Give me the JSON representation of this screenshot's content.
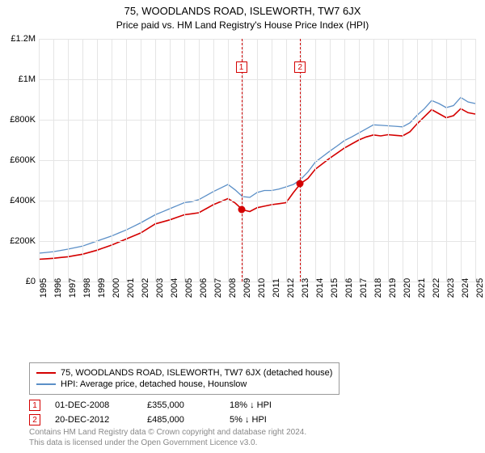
{
  "title": "75, WOODLANDS ROAD, ISLEWORTH, TW7 6JX",
  "subtitle": "Price paid vs. HM Land Registry's House Price Index (HPI)",
  "chart": {
    "type": "line",
    "background_color": "#ffffff",
    "grid_color": "#e5e5e5",
    "title_fontsize": 13,
    "label_fontsize": 11,
    "ylim": [
      0,
      1200000
    ],
    "ytick_step": 200000,
    "ytick_labels": [
      "£0",
      "£200K",
      "£400K",
      "£600K",
      "£800K",
      "£1M",
      "£1.2M"
    ],
    "xlim": [
      1995,
      2025
    ],
    "xtick_step": 1,
    "xtick_labels": [
      "1995",
      "1996",
      "1997",
      "1998",
      "1999",
      "2000",
      "2001",
      "2002",
      "2003",
      "2004",
      "2005",
      "2006",
      "2007",
      "2008",
      "2009",
      "2010",
      "2011",
      "2012",
      "2013",
      "2014",
      "2015",
      "2016",
      "2017",
      "2018",
      "2019",
      "2020",
      "2021",
      "2022",
      "2023",
      "2024",
      "2025"
    ],
    "series": [
      {
        "name": "property",
        "label": "75, WOODLANDS ROAD, ISLEWORTH, TW7 6JX (detached house)",
        "color": "#d40000",
        "line_width": 1.6,
        "x": [
          1995,
          1995.5,
          1996,
          1996.5,
          1997,
          1997.5,
          1998,
          1998.5,
          1999,
          1999.5,
          2000,
          2000.5,
          2001,
          2001.5,
          2002,
          2002.5,
          2003,
          2003.5,
          2004,
          2004.5,
          2005,
          2005.5,
          2006,
          2006.5,
          2007,
          2007.5,
          2008,
          2008.5,
          2009,
          2009.5,
          2010,
          2010.5,
          2011,
          2011.5,
          2012,
          2012.5,
          2013,
          2013.5,
          2014,
          2014.5,
          2015,
          2015.5,
          2016,
          2016.5,
          2017,
          2017.5,
          2018,
          2018.5,
          2019,
          2019.5,
          2020,
          2020.5,
          2021,
          2021.5,
          2022,
          2022.5,
          2023,
          2023.5,
          2024,
          2024.5,
          2025
        ],
        "y": [
          110000,
          112500,
          115000,
          118750,
          122500,
          128750,
          135000,
          145000,
          155000,
          167500,
          180000,
          195000,
          210000,
          225000,
          240000,
          262500,
          285000,
          295000,
          305000,
          317500,
          330000,
          335000,
          340000,
          360000,
          380000,
          395000,
          410000,
          388000,
          355000,
          346000,
          365000,
          372500,
          380000,
          385000,
          390000,
          440000,
          485000,
          510000,
          555000,
          582500,
          610000,
          635000,
          660000,
          680000,
          700000,
          715000,
          725000,
          720000,
          726000,
          723000,
          720000,
          740000,
          780000,
          815000,
          850000,
          830000,
          810000,
          820000,
          855000,
          835000,
          828000
        ]
      },
      {
        "name": "hpi",
        "label": "HPI: Average price, detached house, Hounslow",
        "color": "#5b8fc7",
        "line_width": 1.3,
        "x": [
          1995,
          1995.5,
          1996,
          1996.5,
          1997,
          1997.5,
          1998,
          1998.5,
          1999,
          1999.5,
          2000,
          2000.5,
          2001,
          2001.5,
          2002,
          2002.5,
          2003,
          2003.5,
          2004,
          2004.5,
          2005,
          2005.5,
          2006,
          2006.5,
          2007,
          2007.5,
          2008,
          2008.5,
          2009,
          2009.5,
          2010,
          2010.5,
          2011,
          2011.5,
          2012,
          2012.5,
          2013,
          2013.5,
          2014,
          2014.5,
          2015,
          2015.5,
          2016,
          2016.5,
          2017,
          2017.5,
          2018,
          2018.5,
          2019,
          2019.5,
          2020,
          2020.5,
          2021,
          2021.5,
          2022,
          2022.5,
          2023,
          2023.5,
          2024,
          2024.5,
          2025
        ],
        "y": [
          140000,
          143750,
          147500,
          153750,
          160000,
          167500,
          175000,
          187500,
          200000,
          212500,
          225000,
          240000,
          255000,
          272500,
          290000,
          310000,
          330000,
          345000,
          360000,
          375000,
          390000,
          395000,
          405000,
          425000,
          445000,
          462500,
          480000,
          453000,
          420000,
          416000,
          440000,
          450000,
          450000,
          457000,
          468000,
          480000,
          505000,
          542500,
          590000,
          617500,
          645000,
          670000,
          697000,
          715000,
          735000,
          755000,
          775000,
          772500,
          770000,
          767500,
          765000,
          784000,
          822000,
          855000,
          895000,
          880000,
          860000,
          870000,
          910000,
          888000,
          880000
        ]
      }
    ],
    "markers": [
      {
        "n": "1",
        "x": 2008.92,
        "y": 355000,
        "color": "#d40000"
      },
      {
        "n": "2",
        "x": 2012.96,
        "y": 485000,
        "color": "#d40000"
      }
    ],
    "marker_box_color": "#d40000",
    "marker_vline_color": "#d40000"
  },
  "legend": {
    "border_color": "#999999",
    "items": [
      {
        "color": "#d40000",
        "label": "75, WOODLANDS ROAD, ISLEWORTH, TW7 6JX (detached house)"
      },
      {
        "color": "#5b8fc7",
        "label": "HPI: Average price, detached house, Hounslow"
      }
    ]
  },
  "price_rows": [
    {
      "n": "1",
      "color": "#d40000",
      "date": "01-DEC-2008",
      "price": "£355,000",
      "delta": "18% ↓ HPI"
    },
    {
      "n": "2",
      "color": "#d40000",
      "date": "20-DEC-2012",
      "price": "£485,000",
      "delta": "5% ↓ HPI"
    }
  ],
  "attribution": {
    "line1": "Contains HM Land Registry data © Crown copyright and database right 2024.",
    "line2": "This data is licensed under the Open Government Licence v3.0."
  }
}
